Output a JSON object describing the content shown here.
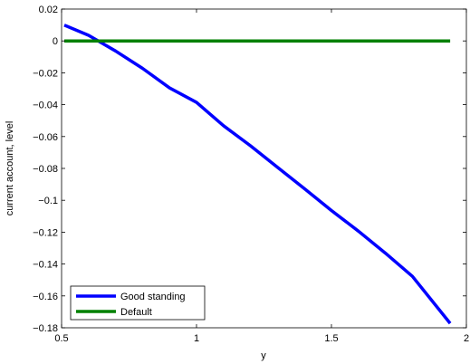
{
  "chart_data": {
    "type": "line",
    "title": "",
    "xlabel": "y",
    "ylabel": "current account, level",
    "xlim": [
      0.5,
      2
    ],
    "ylim": [
      -0.18,
      0.02
    ],
    "xticks": [
      0.5,
      1,
      1.5,
      2
    ],
    "xtick_labels": [
      "0.5",
      "1",
      "1.5",
      "2"
    ],
    "yticks": [
      0.02,
      0,
      -0.02,
      -0.04,
      -0.06,
      -0.08,
      -0.1,
      -0.12,
      -0.14,
      -0.16,
      -0.18
    ],
    "ytick_labels": [
      "0.02",
      "0",
      "−0.02",
      "−0.04",
      "−0.06",
      "−0.08",
      "−0.1",
      "−0.12",
      "−0.14",
      "−0.16",
      "−0.18"
    ],
    "grid": false,
    "legend_position": "bottom-left",
    "series": [
      {
        "name": "Good standing",
        "color": "#0000ff",
        "x": [
          0.51,
          0.6,
          0.7,
          0.8,
          0.9,
          1.0,
          1.1,
          1.2,
          1.3,
          1.4,
          1.5,
          1.6,
          1.7,
          1.8,
          1.94
        ],
        "y": [
          0.0099,
          0.0035,
          -0.0063,
          -0.0172,
          -0.0295,
          -0.0386,
          -0.0532,
          -0.0658,
          -0.0793,
          -0.0927,
          -0.1064,
          -0.1194,
          -0.1332,
          -0.1477,
          -0.1772
        ]
      },
      {
        "name": "Default",
        "color": "#008000",
        "x": [
          0.51,
          1.94
        ],
        "y": [
          0,
          0
        ]
      }
    ]
  }
}
